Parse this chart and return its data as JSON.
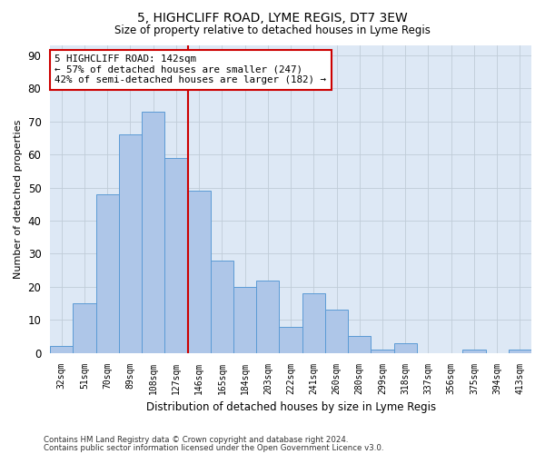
{
  "title": "5, HIGHCLIFF ROAD, LYME REGIS, DT7 3EW",
  "subtitle": "Size of property relative to detached houses in Lyme Regis",
  "xlabel": "Distribution of detached houses by size in Lyme Regis",
  "ylabel": "Number of detached properties",
  "categories": [
    "32sqm",
    "51sqm",
    "70sqm",
    "89sqm",
    "108sqm",
    "127sqm",
    "146sqm",
    "165sqm",
    "184sqm",
    "203sqm",
    "222sqm",
    "241sqm",
    "260sqm",
    "280sqm",
    "299sqm",
    "318sqm",
    "337sqm",
    "356sqm",
    "375sqm",
    "394sqm",
    "413sqm"
  ],
  "values": [
    2,
    15,
    48,
    66,
    73,
    59,
    49,
    28,
    20,
    22,
    8,
    18,
    13,
    5,
    1,
    3,
    0,
    0,
    1,
    0,
    1
  ],
  "bar_color": "#aec6e8",
  "bar_edge_color": "#5b9bd5",
  "background_color": "#ffffff",
  "plot_bg_color": "#dde8f5",
  "grid_color": "#c0ccd8",
  "redline_x": 6.0,
  "annotation_text": "5 HIGHCLIFF ROAD: 142sqm\n← 57% of detached houses are smaller (247)\n42% of semi-detached houses are larger (182) →",
  "annotation_box_color": "#ffffff",
  "annotation_box_edge": "#cc0000",
  "footnote1": "Contains HM Land Registry data © Crown copyright and database right 2024.",
  "footnote2": "Contains public sector information licensed under the Open Government Licence v3.0.",
  "ylim": [
    0,
    93
  ],
  "yticks": [
    0,
    10,
    20,
    30,
    40,
    50,
    60,
    70,
    80,
    90
  ]
}
